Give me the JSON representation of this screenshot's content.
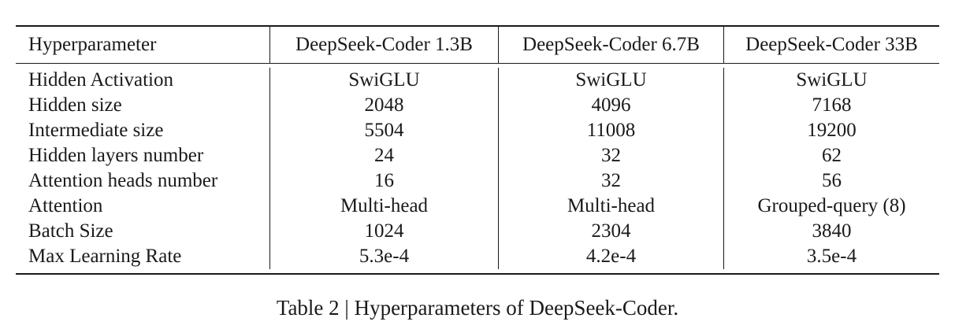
{
  "table": {
    "headers": [
      "Hyperparameter",
      "DeepSeek-Coder 1.3B",
      "DeepSeek-Coder 6.7B",
      "DeepSeek-Coder 33B"
    ],
    "rows": [
      [
        "Hidden Activation",
        "SwiGLU",
        "SwiGLU",
        "SwiGLU"
      ],
      [
        "Hidden size",
        "2048",
        "4096",
        "7168"
      ],
      [
        "Intermediate size",
        "5504",
        "11008",
        "19200"
      ],
      [
        "Hidden layers number",
        "24",
        "32",
        "62"
      ],
      [
        "Attention heads number",
        "16",
        "32",
        "56"
      ],
      [
        "Attention",
        "Multi-head",
        "Multi-head",
        "Grouped-query (8)"
      ],
      [
        "Batch Size",
        "1024",
        "2304",
        "3840"
      ],
      [
        "Max Learning Rate",
        "5.3e-4",
        "4.2e-4",
        "3.5e-4"
      ]
    ]
  },
  "caption": "Table 2 | Hyperparameters of DeepSeek-Coder."
}
